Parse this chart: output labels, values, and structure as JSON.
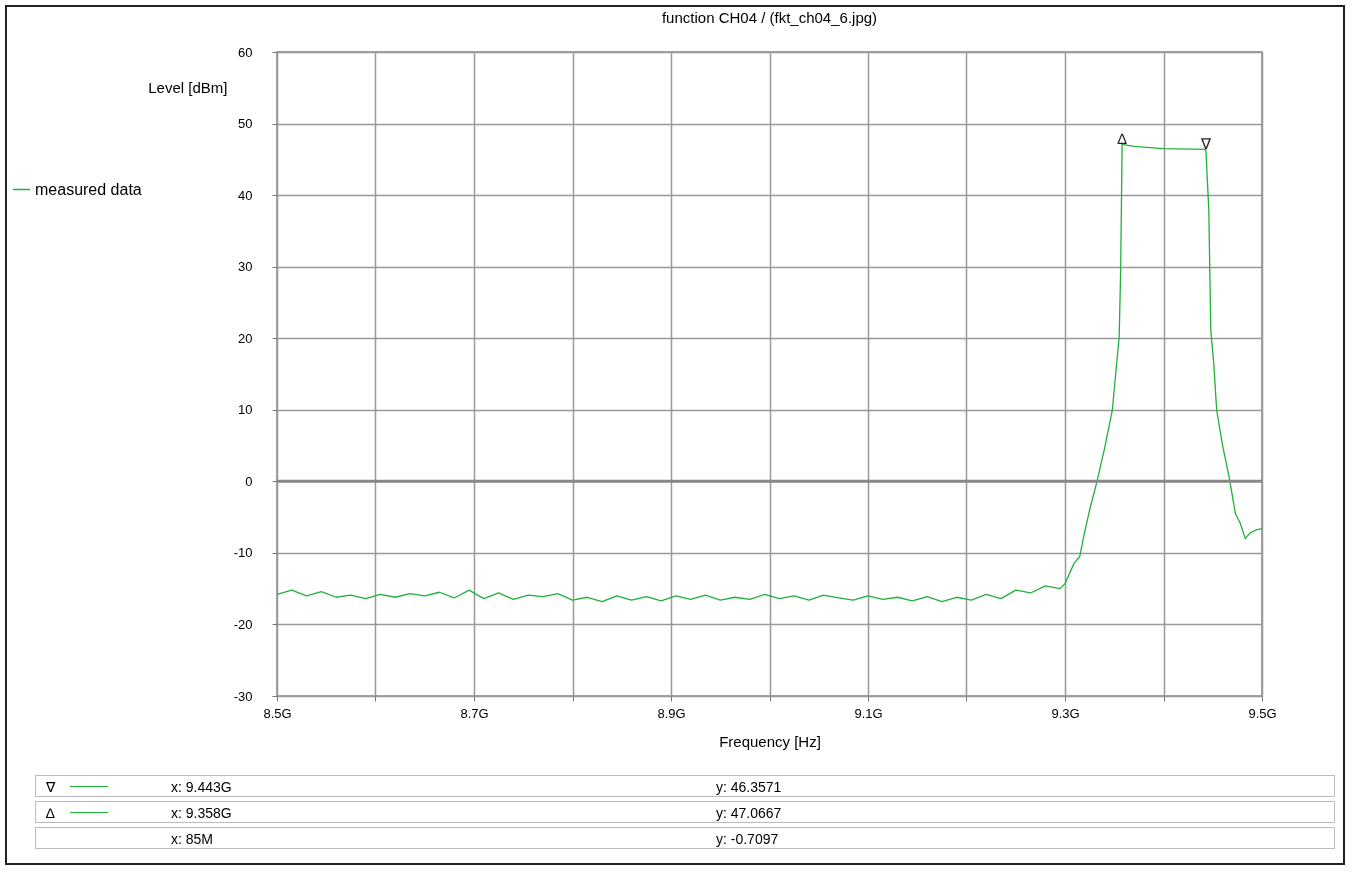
{
  "chart_data": {
    "type": "line",
    "title": "function CH04 / (fkt_ch04_6.jpg)",
    "xlabel": "Frequency [Hz]",
    "ylabel": "Level [dBm]",
    "x": [
      8.5,
      8.515,
      8.53,
      8.545,
      8.56,
      8.575,
      8.59,
      8.605,
      8.62,
      8.635,
      8.65,
      8.665,
      8.68,
      8.695,
      8.71,
      8.725,
      8.74,
      8.755,
      8.77,
      8.785,
      8.8,
      8.815,
      8.83,
      8.845,
      8.86,
      8.875,
      8.89,
      8.905,
      8.92,
      8.935,
      8.95,
      8.965,
      8.98,
      8.995,
      9.01,
      9.025,
      9.04,
      9.055,
      9.07,
      9.085,
      9.1,
      9.115,
      9.13,
      9.145,
      9.16,
      9.175,
      9.19,
      9.205,
      9.22,
      9.235,
      9.25,
      9.265,
      9.28,
      9.295,
      9.3,
      9.309,
      9.315,
      9.319,
      9.325,
      9.3325,
      9.34,
      9.348,
      9.355,
      9.3565,
      9.358,
      9.37,
      9.4,
      9.443,
      9.446,
      9.448,
      9.451,
      9.454,
      9.46,
      9.4665,
      9.473,
      9.478,
      9.483,
      9.488,
      9.494,
      9.5
    ],
    "series": [
      {
        "name": "measured data",
        "color": "#22b03a",
        "values": [
          -15.8,
          -15.2,
          -16.0,
          -15.4,
          -16.2,
          -15.9,
          -16.4,
          -15.8,
          -16.2,
          -15.7,
          -16.0,
          -15.5,
          -16.3,
          -15.2,
          -16.4,
          -15.6,
          -16.5,
          -15.9,
          -16.1,
          -15.7,
          -16.6,
          -16.2,
          -16.8,
          -16.0,
          -16.6,
          -16.1,
          -16.7,
          -16.0,
          -16.5,
          -15.9,
          -16.6,
          -16.2,
          -16.5,
          -15.8,
          -16.4,
          -16.0,
          -16.6,
          -15.9,
          -16.3,
          -16.6,
          -16.0,
          -16.5,
          -16.2,
          -16.7,
          -16.1,
          -16.8,
          -16.2,
          -16.6,
          -15.8,
          -16.4,
          -15.2,
          -15.6,
          -14.6,
          -15.0,
          -14.3,
          -11.5,
          -10.5,
          -7.7,
          -4,
          0,
          4.5,
          9.9,
          20.2,
          29.4,
          47.1,
          46.8,
          46.5,
          46.4,
          37.9,
          21.1,
          16.5,
          9.9,
          5,
          0.7,
          -4.5,
          -5.9,
          -8.0,
          -7.2,
          -6.8,
          -6.6
        ]
      }
    ],
    "xlim": [
      8.5,
      9.5
    ],
    "xticks": [
      {
        "value": 8.5,
        "label": "8.5G"
      },
      {
        "value": 8.6,
        "label": null
      },
      {
        "value": 8.7,
        "label": "8.7G"
      },
      {
        "value": 8.8,
        "label": null
      },
      {
        "value": 8.9,
        "label": "8.9G"
      },
      {
        "value": 9.0,
        "label": null
      },
      {
        "value": 9.1,
        "label": "9.1G"
      },
      {
        "value": 9.2,
        "label": null
      },
      {
        "value": 9.3,
        "label": "9.3G"
      },
      {
        "value": 9.4,
        "label": null
      },
      {
        "value": 9.5,
        "label": "9.5G"
      }
    ],
    "ylim": [
      -30,
      60
    ],
    "yticks": [
      -30,
      -20,
      -10,
      0,
      10,
      20,
      30,
      40,
      50,
      60
    ],
    "grid": true,
    "legend": "left",
    "marker": "none",
    "line_style": "solid",
    "ref_lines": [
      {
        "axis": "y",
        "value": 0,
        "label": null,
        "color": "#888888"
      }
    ],
    "annotations": [
      {
        "text": "∇",
        "x": 9.443,
        "y": 46.3571
      },
      {
        "text": "∆",
        "x": 9.358,
        "y": 47.0667
      },
      "x: 9.443G",
      "y: 46.3571",
      "x: 9.358G",
      "y: 47.0667",
      "x: 85M",
      "y: -0.7097"
    ]
  }
}
